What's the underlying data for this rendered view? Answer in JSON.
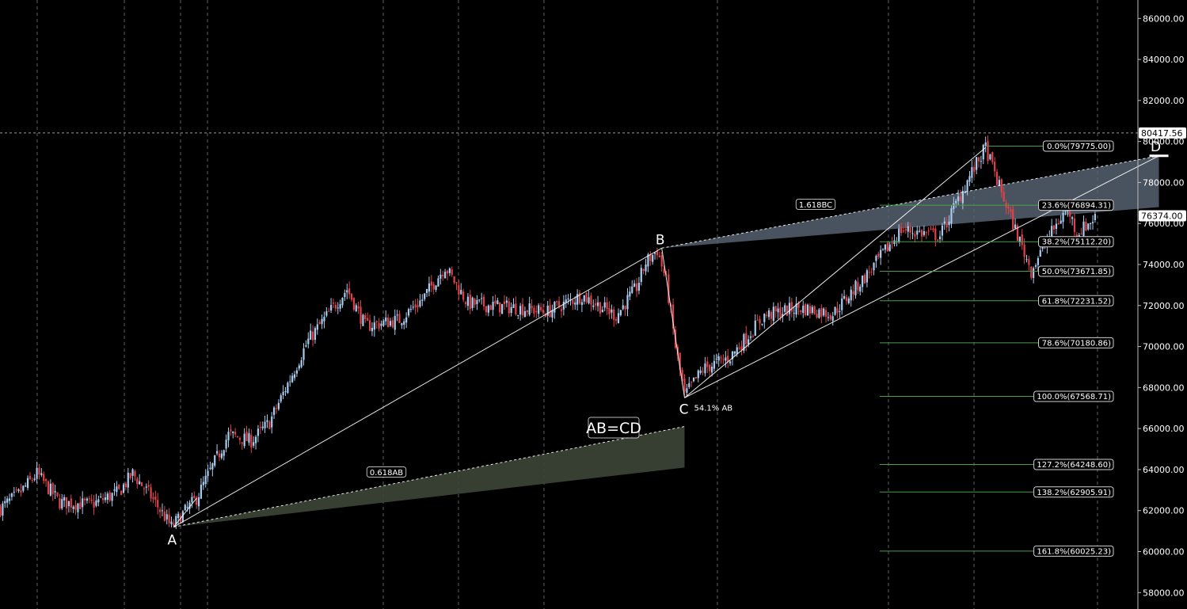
{
  "colors": {
    "background": "#000000",
    "grid": "#7a7a7a",
    "up_candle": "#a8ccf0",
    "down_candle": "#e0424a",
    "pattern_line": "#ffffff",
    "fib_line": "#4a9e4a",
    "projection_fill": "#3c4637",
    "upper_fill": "#566270"
  },
  "chart_data": {
    "type": "candlestick",
    "ylim": [
      57200,
      86900
    ],
    "y_ticks": [
      "86000.00",
      "84000.00",
      "82000.00",
      "80000.00",
      "78000.00",
      "76000.00",
      "74000.00",
      "72000.00",
      "70000.00",
      "68000.00",
      "66000.00",
      "64000.00",
      "62000.00",
      "60000.00",
      "58000.00"
    ],
    "y_tick_values": [
      86000,
      84000,
      82000,
      80000,
      78000,
      76000,
      74000,
      72000,
      70000,
      68000,
      66000,
      64000,
      62000,
      60000,
      58000
    ],
    "crosshair_price": {
      "label": "80417.56",
      "value": 80417.56
    },
    "last_price": {
      "label": "76374.00",
      "value": 76374
    },
    "bar_count": 300,
    "close_path_anchors": [
      {
        "bar": 0,
        "close": 62100
      },
      {
        "bar": 8,
        "close": 62800
      },
      {
        "bar": 16,
        "close": 63800
      },
      {
        "bar": 26,
        "close": 62400
      },
      {
        "bar": 40,
        "close": 62300
      },
      {
        "bar": 52,
        "close": 62900
      },
      {
        "bar": 58,
        "close": 63800
      },
      {
        "bar": 66,
        "close": 62700
      },
      {
        "bar": 75,
        "close": 61200
      },
      {
        "bar": 86,
        "close": 62600
      },
      {
        "bar": 100,
        "close": 65700
      },
      {
        "bar": 110,
        "close": 65400
      },
      {
        "bar": 118,
        "close": 66300
      },
      {
        "bar": 135,
        "close": 70300
      },
      {
        "bar": 152,
        "close": 72800
      },
      {
        "bar": 160,
        "close": 71000
      },
      {
        "bar": 175,
        "close": 71300
      },
      {
        "bar": 185,
        "close": 72300
      },
      {
        "bar": 195,
        "close": 73900
      },
      {
        "bar": 205,
        "close": 72100
      },
      {
        "bar": 225,
        "close": 71900
      },
      {
        "bar": 240,
        "close": 71700
      },
      {
        "bar": 255,
        "close": 72500
      },
      {
        "bar": 270,
        "close": 71500
      },
      {
        "bar": 279,
        "close": 72900
      },
      {
        "bar": 283,
        "close": 74100
      },
      {
        "bar": 288,
        "close": 74700
      },
      {
        "bar": 292,
        "close": 73200
      },
      {
        "bar": 296,
        "close": 70000
      },
      {
        "bar": 300,
        "close": 67600
      },
      {
        "bar": 308,
        "close": 68900
      },
      {
        "bar": 320,
        "close": 69500
      },
      {
        "bar": 335,
        "close": 71500
      },
      {
        "bar": 350,
        "close": 71900
      },
      {
        "bar": 365,
        "close": 71600
      },
      {
        "bar": 380,
        "close": 73500
      },
      {
        "bar": 395,
        "close": 75700
      },
      {
        "bar": 412,
        "close": 75400
      },
      {
        "bar": 425,
        "close": 78300
      },
      {
        "bar": 432,
        "close": 79700
      },
      {
        "bar": 438,
        "close": 77800
      },
      {
        "bar": 444,
        "close": 76000
      },
      {
        "bar": 452,
        "close": 73700
      },
      {
        "bar": 460,
        "close": 75400
      },
      {
        "bar": 468,
        "close": 76800
      },
      {
        "bar": 472,
        "close": 75500
      },
      {
        "bar": 480,
        "close": 76300
      }
    ],
    "pattern_points": [
      {
        "label": "A",
        "bar": 76,
        "price": 61200
      },
      {
        "label": "B",
        "bar": 290,
        "price": 74800
      },
      {
        "label": "C",
        "bar": 300,
        "price": 67500
      },
      {
        "label": "D",
        "bar": 508,
        "price": 79300
      }
    ],
    "pattern_labels": {
      "ab_ratio": "0.618AB",
      "bc_ratio": "1.618BC",
      "c_retrace": "54.1% AB",
      "pattern_name": "AB=CD"
    },
    "fib_levels": [
      {
        "label": "0.0%(79775.00)",
        "value": 79775.0
      },
      {
        "label": "23.6%(76894.31)",
        "value": 76894.31
      },
      {
        "label": "38.2%(75112.20)",
        "value": 75112.2
      },
      {
        "label": "50.0%(73671.85)",
        "value": 73671.85
      },
      {
        "label": "61.8%(72231.52)",
        "value": 72231.52
      },
      {
        "label": "78.6%(70180.86)",
        "value": 70180.86
      },
      {
        "label": "100.0%(67568.71)",
        "value": 67568.71
      },
      {
        "label": "127.2%(64248.60)",
        "value": 64248.6
      },
      {
        "label": "138.2%(62905.91)",
        "value": 62905.91
      },
      {
        "label": "161.8%(60025.23)",
        "value": 60025.23
      }
    ]
  }
}
